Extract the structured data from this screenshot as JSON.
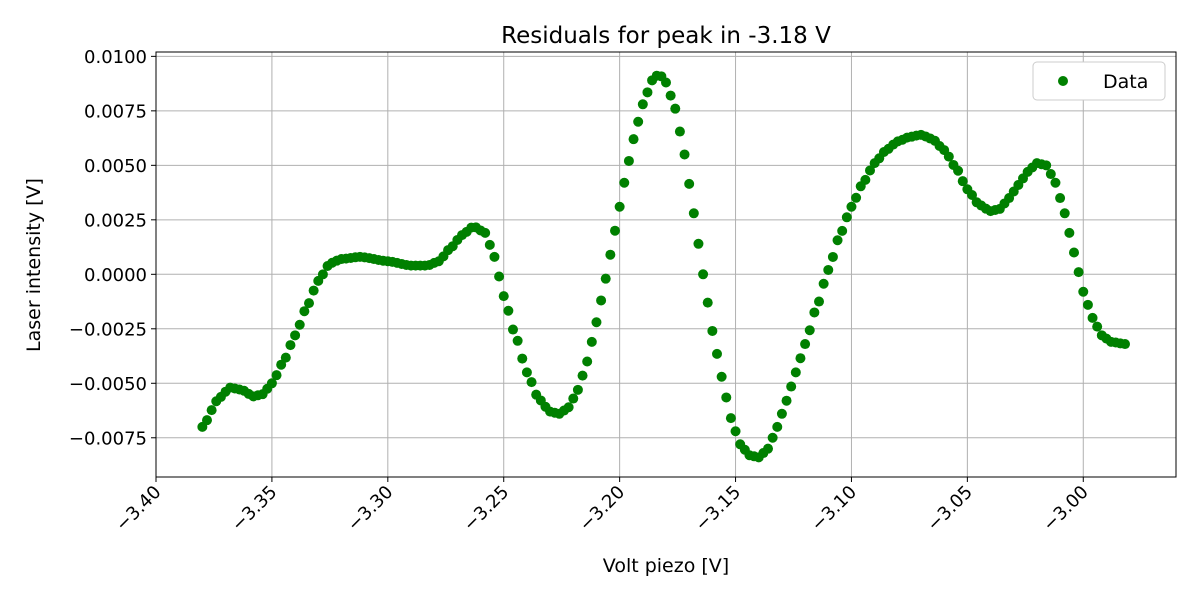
{
  "chart_data": {
    "type": "scatter",
    "title": "Residuals for peak in -3.18 V",
    "xlabel": "Volt piezo [V]",
    "ylabel": "Laser intensity [V]",
    "xlim": [
      -3.4,
      -2.96
    ],
    "ylim": [
      -0.0093,
      0.0102
    ],
    "x_ticks": [
      -3.4,
      -3.35,
      -3.3,
      -3.25,
      -3.2,
      -3.15,
      -3.1,
      -3.05,
      -3.0
    ],
    "x_tick_labels": [
      "−3.40",
      "−3.35",
      "−3.30",
      "−3.25",
      "−3.20",
      "−3.15",
      "−3.10",
      "−3.05",
      "−3.00"
    ],
    "y_ticks": [
      -0.0075,
      -0.005,
      -0.0025,
      0.0,
      0.0025,
      0.005,
      0.0075,
      0.01
    ],
    "y_tick_labels": [
      "−0.0075",
      "−0.0050",
      "−0.0025",
      "0.0000",
      "0.0025",
      "0.0050",
      "0.0075",
      "0.0100"
    ],
    "grid": true,
    "legend_position": "top-right",
    "color": "#008000",
    "series": [
      {
        "name": "Data",
        "x_range": [
          -3.38,
          -2.982
        ],
        "point_count": 200,
        "keypoints": [
          [
            -3.38,
            -0.007
          ],
          [
            -3.373,
            -0.0057
          ],
          [
            -3.368,
            -0.0052
          ],
          [
            -3.363,
            -0.0053
          ],
          [
            -3.358,
            -0.0056
          ],
          [
            -3.354,
            -0.0055
          ],
          [
            -3.35,
            -0.005
          ],
          [
            -3.345,
            -0.004
          ],
          [
            -3.34,
            -0.0028
          ],
          [
            -3.335,
            -0.0015
          ],
          [
            -3.33,
            -0.0003
          ],
          [
            -3.325,
            0.0005
          ],
          [
            -3.32,
            0.0007
          ],
          [
            -3.312,
            0.0008
          ],
          [
            -3.3,
            0.0006
          ],
          [
            -3.29,
            0.0004
          ],
          [
            -3.283,
            0.0004
          ],
          [
            -3.278,
            0.0006
          ],
          [
            -3.273,
            0.0012
          ],
          [
            -3.268,
            0.0018
          ],
          [
            -3.263,
            0.0022
          ],
          [
            -3.258,
            0.0019
          ],
          [
            -3.254,
            0.0008
          ],
          [
            -3.25,
            -0.001
          ],
          [
            -3.245,
            -0.0028
          ],
          [
            -3.24,
            -0.0045
          ],
          [
            -3.235,
            -0.0057
          ],
          [
            -3.23,
            -0.0063
          ],
          [
            -3.226,
            -0.0064
          ],
          [
            -3.222,
            -0.0061
          ],
          [
            -3.218,
            -0.0053
          ],
          [
            -3.214,
            -0.004
          ],
          [
            -3.21,
            -0.0022
          ],
          [
            -3.206,
            -0.0002
          ],
          [
            -3.202,
            0.002
          ],
          [
            -3.198,
            0.0042
          ],
          [
            -3.194,
            0.0062
          ],
          [
            -3.19,
            0.0078
          ],
          [
            -3.186,
            0.0089
          ],
          [
            -3.183,
            0.0092
          ],
          [
            -3.18,
            0.0088
          ],
          [
            -3.176,
            0.0076
          ],
          [
            -3.172,
            0.0055
          ],
          [
            -3.168,
            0.0028
          ],
          [
            -3.164,
            0.0
          ],
          [
            -3.16,
            -0.0026
          ],
          [
            -3.156,
            -0.0047
          ],
          [
            -3.152,
            -0.0066
          ],
          [
            -3.148,
            -0.0078
          ],
          [
            -3.144,
            -0.0083
          ],
          [
            -3.14,
            -0.0084
          ],
          [
            -3.136,
            -0.008
          ],
          [
            -3.132,
            -0.007
          ],
          [
            -3.128,
            -0.0058
          ],
          [
            -3.124,
            -0.0045
          ],
          [
            -3.12,
            -0.0032
          ],
          [
            -3.115,
            -0.0015
          ],
          [
            -3.11,
            0.0002
          ],
          [
            -3.105,
            0.0018
          ],
          [
            -3.1,
            0.0031
          ],
          [
            -3.095,
            0.0042
          ],
          [
            -3.09,
            0.0051
          ],
          [
            -3.085,
            0.0057
          ],
          [
            -3.08,
            0.0061
          ],
          [
            -3.075,
            0.0063
          ],
          [
            -3.07,
            0.0064
          ],
          [
            -3.065,
            0.0062
          ],
          [
            -3.06,
            0.0057
          ],
          [
            -3.055,
            0.0049
          ],
          [
            -3.05,
            0.0039
          ],
          [
            -3.045,
            0.0032
          ],
          [
            -3.04,
            0.0029
          ],
          [
            -3.036,
            0.003
          ],
          [
            -3.032,
            0.0035
          ],
          [
            -3.028,
            0.0041
          ],
          [
            -3.024,
            0.0047
          ],
          [
            -3.02,
            0.0051
          ],
          [
            -3.016,
            0.005
          ],
          [
            -3.012,
            0.0042
          ],
          [
            -3.008,
            0.0028
          ],
          [
            -3.004,
            0.001
          ],
          [
            -3.0,
            -0.0008
          ],
          [
            -2.996,
            -0.002
          ],
          [
            -2.992,
            -0.0028
          ],
          [
            -2.988,
            -0.0031
          ],
          [
            -2.982,
            -0.0032
          ]
        ]
      }
    ]
  }
}
